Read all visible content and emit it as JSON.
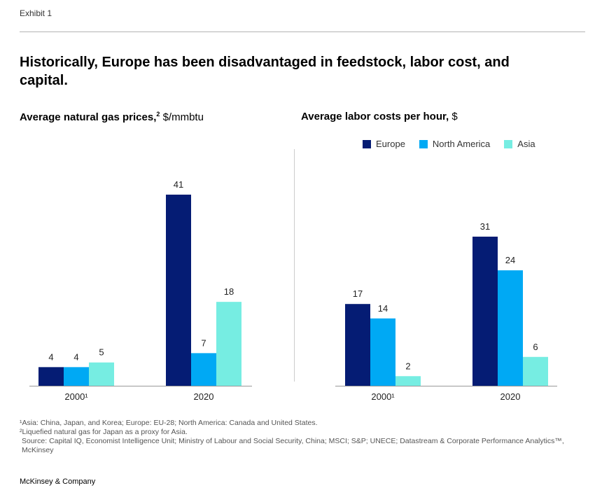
{
  "exhibit_label": "Exhibit 1",
  "headline": "Historically, Europe has been disadvantaged in feedstock, labor cost, and capital.",
  "legend": [
    {
      "label": "Europe",
      "color": "#051c74"
    },
    {
      "label": "North America",
      "color": "#00a9f4"
    },
    {
      "label": "Asia",
      "color": "#76ede2"
    }
  ],
  "chart_data": [
    {
      "type": "bar",
      "title": "Average natural gas prices,",
      "title_sup": "2",
      "unit": "$/mmbtu",
      "categories": [
        "2000¹",
        "2020"
      ],
      "series": [
        {
          "name": "Europe",
          "values": [
            4,
            41
          ]
        },
        {
          "name": "North America",
          "values": [
            4,
            7
          ]
        },
        {
          "name": "Asia",
          "values": [
            5,
            18
          ]
        }
      ],
      "ylim": [
        0,
        41
      ]
    },
    {
      "type": "bar",
      "title": "Average labor costs per hour,",
      "unit": "$",
      "categories": [
        "2000¹",
        "2020"
      ],
      "series": [
        {
          "name": "Europe",
          "values": [
            17,
            31
          ]
        },
        {
          "name": "North America",
          "values": [
            14,
            24
          ]
        },
        {
          "name": "Asia",
          "values": [
            2,
            6
          ]
        }
      ],
      "ylim": [
        0,
        31
      ]
    }
  ],
  "footnotes": [
    "¹Asia: China, Japan, and Korea;  Europe: EU-28; North America: Canada  and United States.",
    "²Liquefied natural gas for Japan as a proxy for Asia.",
    "Source: Capital IQ, Economist Intelligence Unit; Ministry of Labour and Social Security, China; MSCI; S&P; UNECE; Datastream & Corporate Performance Analytics™, McKinsey"
  ],
  "brand": "McKinsey & Company"
}
